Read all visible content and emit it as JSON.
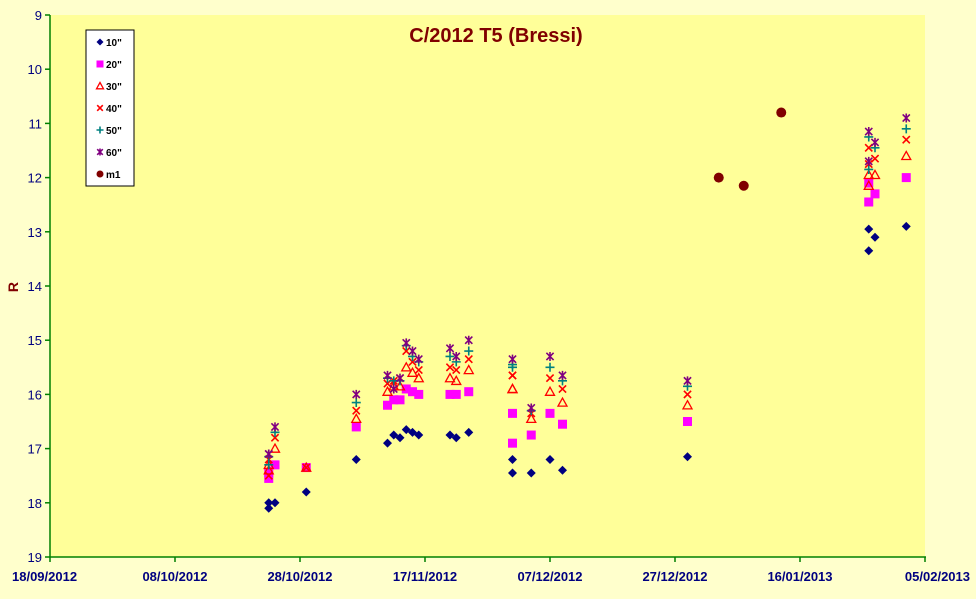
{
  "chart_data": {
    "type": "scatter",
    "title": "C/2012 T5 (Bressi)",
    "xlabel": "",
    "ylabel": "R",
    "x_type": "date",
    "xlim": [
      "2012-09-18",
      "2013-02-05"
    ],
    "ylim": [
      19,
      9
    ],
    "y_inverted": true,
    "y_ticks": [
      "9",
      "10",
      "11",
      "12",
      "13",
      "14",
      "15",
      "16",
      "17",
      "18",
      "19"
    ],
    "x_ticks": [
      "18/09/2012",
      "08/10/2012",
      "28/10/2012",
      "17/11/2012",
      "07/12/2012",
      "27/12/2012",
      "16/01/2013",
      "05/02/2013"
    ],
    "grid": false,
    "legend_position": "top-left",
    "colors": {
      "plot_bg": "#FFFF99",
      "chart_bg": "#FFFFCC",
      "axis": "#008000",
      "tick_text": "#000080",
      "title": "#800000",
      "ylabel": "#800000"
    },
    "series": [
      {
        "name": "10\"",
        "marker": "diamond",
        "color": "#000080",
        "points": [
          [
            "2012-10-23",
            18.1
          ],
          [
            "2012-10-23",
            18.0
          ],
          [
            "2012-10-24",
            18.0
          ],
          [
            "2012-10-29",
            17.8
          ],
          [
            "2012-11-06",
            17.2
          ],
          [
            "2012-11-11",
            16.9
          ],
          [
            "2012-11-12",
            16.75
          ],
          [
            "2012-11-13",
            16.8
          ],
          [
            "2012-11-14",
            16.65
          ],
          [
            "2012-11-15",
            16.7
          ],
          [
            "2012-11-16",
            16.75
          ],
          [
            "2012-11-21",
            16.75
          ],
          [
            "2012-11-22",
            16.8
          ],
          [
            "2012-11-24",
            16.7
          ],
          [
            "2012-12-01",
            17.2
          ],
          [
            "2012-12-01",
            17.45
          ],
          [
            "2012-12-04",
            17.45
          ],
          [
            "2012-12-07",
            17.2
          ],
          [
            "2012-12-09",
            17.4
          ],
          [
            "2012-12-29",
            17.15
          ],
          [
            "2013-01-27",
            12.95
          ],
          [
            "2013-01-27",
            13.35
          ],
          [
            "2013-01-28",
            13.1
          ],
          [
            "2013-02-02",
            12.9
          ]
        ]
      },
      {
        "name": "20\"",
        "marker": "square",
        "color": "#FF00FF",
        "points": [
          [
            "2012-10-23",
            17.45
          ],
          [
            "2012-10-23",
            17.55
          ],
          [
            "2012-10-24",
            17.3
          ],
          [
            "2012-10-29",
            17.35
          ],
          [
            "2012-11-06",
            16.6
          ],
          [
            "2012-11-11",
            16.2
          ],
          [
            "2012-11-12",
            16.1
          ],
          [
            "2012-11-13",
            16.1
          ],
          [
            "2012-11-14",
            15.9
          ],
          [
            "2012-11-15",
            15.95
          ],
          [
            "2012-11-16",
            16.0
          ],
          [
            "2012-11-21",
            16.0
          ],
          [
            "2012-11-22",
            16.0
          ],
          [
            "2012-11-24",
            15.95
          ],
          [
            "2012-12-01",
            16.35
          ],
          [
            "2012-12-01",
            16.9
          ],
          [
            "2012-12-04",
            16.75
          ],
          [
            "2012-12-07",
            16.35
          ],
          [
            "2012-12-09",
            16.55
          ],
          [
            "2012-12-29",
            16.5
          ],
          [
            "2013-01-27",
            12.1
          ],
          [
            "2013-01-27",
            12.45
          ],
          [
            "2013-01-28",
            12.3
          ],
          [
            "2013-02-02",
            12.0
          ]
        ]
      },
      {
        "name": "30\"",
        "marker": "triangle",
        "color": "#FF0000",
        "points": [
          [
            "2012-10-23",
            17.3
          ],
          [
            "2012-10-23",
            17.4
          ],
          [
            "2012-10-24",
            17.0
          ],
          [
            "2012-10-29",
            17.35
          ],
          [
            "2012-11-06",
            16.45
          ],
          [
            "2012-11-11",
            15.95
          ],
          [
            "2012-11-12",
            15.85
          ],
          [
            "2012-11-13",
            15.85
          ],
          [
            "2012-11-14",
            15.5
          ],
          [
            "2012-11-15",
            15.6
          ],
          [
            "2012-11-16",
            15.7
          ],
          [
            "2012-11-21",
            15.7
          ],
          [
            "2012-11-22",
            15.75
          ],
          [
            "2012-11-24",
            15.55
          ],
          [
            "2012-12-01",
            15.9
          ],
          [
            "2012-12-01",
            15.9
          ],
          [
            "2012-12-04",
            16.45
          ],
          [
            "2012-12-07",
            15.95
          ],
          [
            "2012-12-09",
            16.15
          ],
          [
            "2012-12-29",
            16.2
          ],
          [
            "2013-01-27",
            12.15
          ],
          [
            "2013-01-27",
            11.95
          ],
          [
            "2013-01-28",
            11.95
          ],
          [
            "2013-02-02",
            11.6
          ]
        ]
      },
      {
        "name": "40\"",
        "marker": "x",
        "color": "#FF0000",
        "points": [
          [
            "2012-10-23",
            17.2
          ],
          [
            "2012-10-23",
            17.5
          ],
          [
            "2012-10-24",
            16.8
          ],
          [
            "2012-10-29",
            17.35
          ],
          [
            "2012-11-06",
            16.3
          ],
          [
            "2012-11-11",
            15.8
          ],
          [
            "2012-11-12",
            15.75
          ],
          [
            "2012-11-13",
            15.7
          ],
          [
            "2012-11-14",
            15.2
          ],
          [
            "2012-11-15",
            15.4
          ],
          [
            "2012-11-16",
            15.55
          ],
          [
            "2012-11-21",
            15.5
          ],
          [
            "2012-11-22",
            15.55
          ],
          [
            "2012-11-24",
            15.35
          ],
          [
            "2012-12-01",
            15.65
          ],
          [
            "2012-12-01",
            15.65
          ],
          [
            "2012-12-04",
            16.35
          ],
          [
            "2012-12-07",
            15.7
          ],
          [
            "2012-12-09",
            15.9
          ],
          [
            "2012-12-29",
            16.0
          ],
          [
            "2013-01-27",
            11.45
          ],
          [
            "2013-01-27",
            11.75
          ],
          [
            "2013-01-28",
            11.65
          ],
          [
            "2013-02-02",
            11.3
          ]
        ]
      },
      {
        "name": "50\"",
        "marker": "plus",
        "color": "#008080",
        "points": [
          [
            "2012-10-23",
            17.15
          ],
          [
            "2012-10-23",
            17.3
          ],
          [
            "2012-10-24",
            16.7
          ],
          [
            "2012-11-06",
            16.15
          ],
          [
            "2012-11-11",
            15.7
          ],
          [
            "2012-11-12",
            15.75
          ],
          [
            "2012-11-13",
            15.75
          ],
          [
            "2012-11-14",
            15.1
          ],
          [
            "2012-11-15",
            15.3
          ],
          [
            "2012-11-16",
            15.4
          ],
          [
            "2012-11-21",
            15.3
          ],
          [
            "2012-11-22",
            15.4
          ],
          [
            "2012-11-24",
            15.2
          ],
          [
            "2012-12-01",
            15.5
          ],
          [
            "2012-12-01",
            15.45
          ],
          [
            "2012-12-04",
            16.3
          ],
          [
            "2012-12-07",
            15.5
          ],
          [
            "2012-12-09",
            15.75
          ],
          [
            "2012-12-29",
            15.85
          ],
          [
            "2013-01-27",
            11.85
          ],
          [
            "2013-01-27",
            11.25
          ],
          [
            "2013-01-28",
            11.45
          ],
          [
            "2013-02-02",
            11.1
          ]
        ]
      },
      {
        "name": "60\"",
        "marker": "star",
        "color": "#800080",
        "points": [
          [
            "2012-10-23",
            17.1
          ],
          [
            "2012-10-23",
            17.1
          ],
          [
            "2012-10-24",
            16.6
          ],
          [
            "2012-11-06",
            16.0
          ],
          [
            "2012-11-11",
            15.65
          ],
          [
            "2012-11-12",
            15.9
          ],
          [
            "2012-11-13",
            15.7
          ],
          [
            "2012-11-14",
            15.05
          ],
          [
            "2012-11-15",
            15.2
          ],
          [
            "2012-11-16",
            15.35
          ],
          [
            "2012-11-21",
            15.15
          ],
          [
            "2012-11-22",
            15.3
          ],
          [
            "2012-11-24",
            15.0
          ],
          [
            "2012-12-01",
            15.35
          ],
          [
            "2012-12-04",
            16.25
          ],
          [
            "2012-12-07",
            15.3
          ],
          [
            "2012-12-09",
            15.65
          ],
          [
            "2012-12-29",
            15.75
          ],
          [
            "2013-01-27",
            11.7
          ],
          [
            "2013-01-27",
            11.15
          ],
          [
            "2013-01-28",
            11.35
          ],
          [
            "2013-02-02",
            10.9
          ]
        ]
      },
      {
        "name": "m1",
        "marker": "circle",
        "color": "#800000",
        "points": [
          [
            "2013-01-03",
            12.0
          ],
          [
            "2013-01-07",
            12.15
          ],
          [
            "2013-01-13",
            10.8
          ]
        ]
      }
    ]
  }
}
